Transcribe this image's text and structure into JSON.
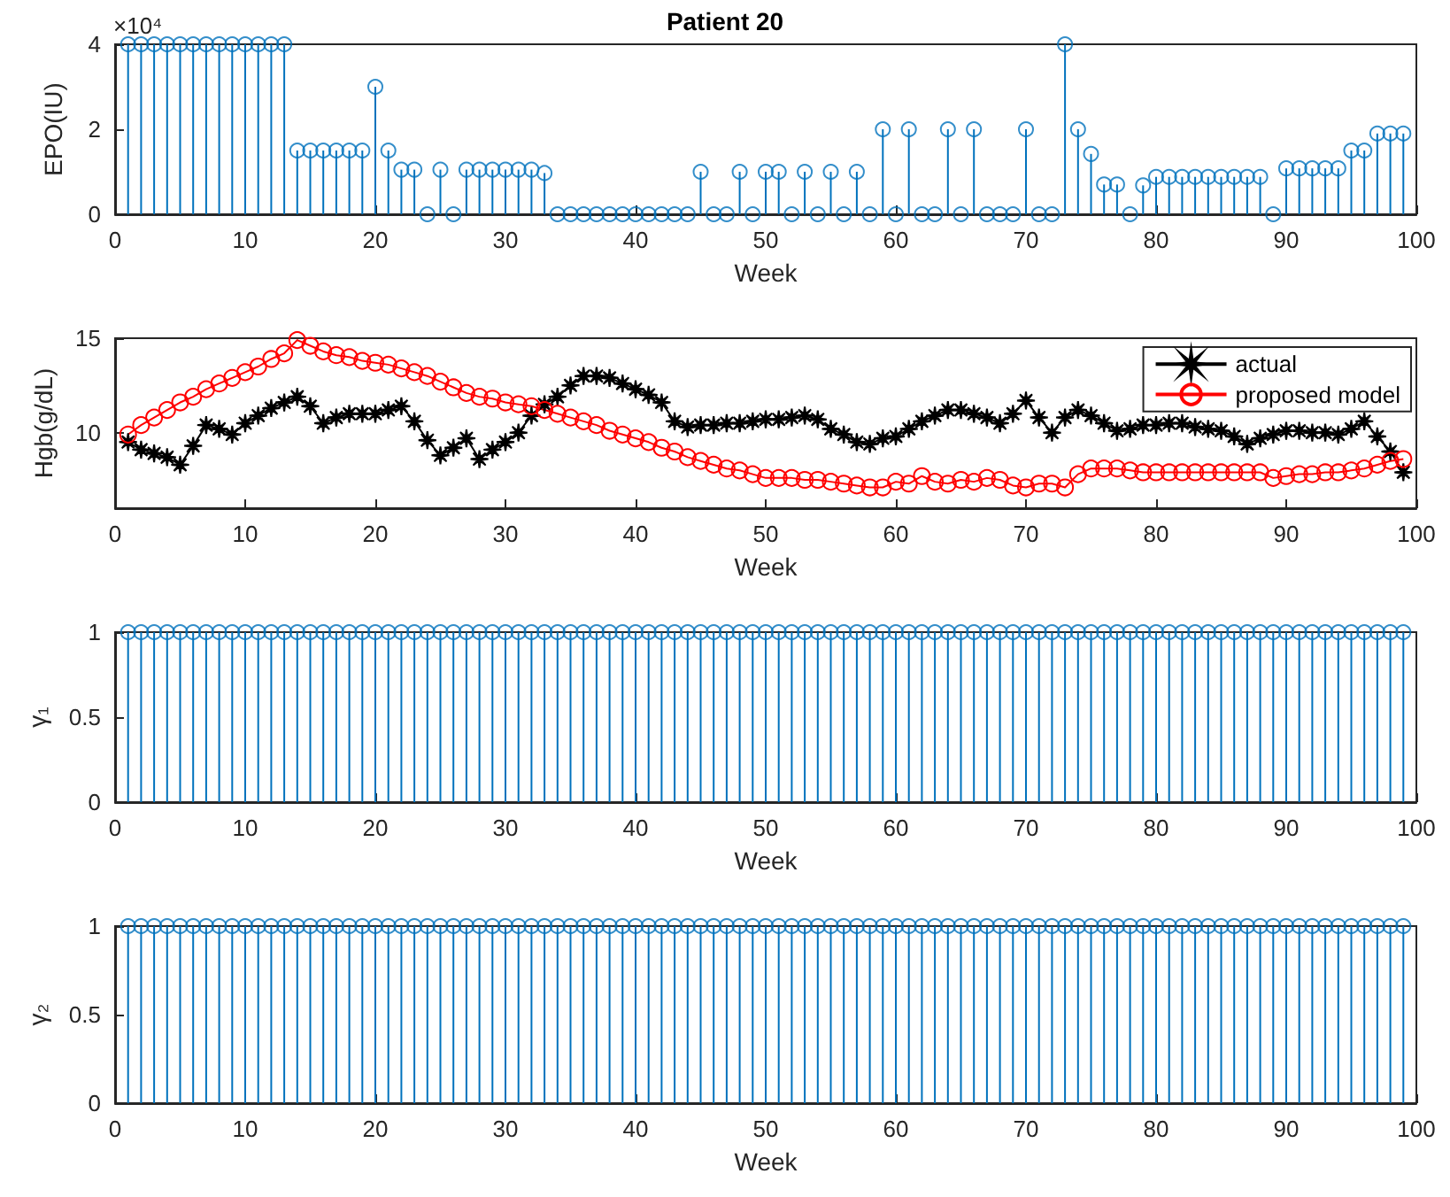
{
  "chart_data": [
    {
      "type": "lollipop",
      "title": "Patient 20",
      "xlabel": "Week",
      "ylabel": "EPO(IU)",
      "annotations": [
        "×10⁴"
      ],
      "marker": "circle",
      "xlim": [
        0,
        100
      ],
      "xticks": [
        0,
        10,
        20,
        30,
        40,
        50,
        60,
        70,
        80,
        90,
        100
      ],
      "ylim": [
        0,
        4
      ],
      "yticks": [
        0,
        2,
        4
      ],
      "x": [
        1,
        2,
        3,
        4,
        5,
        6,
        7,
        8,
        9,
        10,
        11,
        12,
        13,
        14,
        15,
        16,
        17,
        18,
        19,
        20,
        21,
        22,
        23,
        24,
        25,
        26,
        27,
        28,
        29,
        30,
        31,
        32,
        33,
        34,
        35,
        36,
        37,
        38,
        39,
        40,
        41,
        42,
        43,
        44,
        45,
        46,
        47,
        48,
        49,
        50,
        51,
        52,
        53,
        54,
        55,
        56,
        57,
        58,
        59,
        60,
        61,
        62,
        63,
        64,
        65,
        66,
        67,
        68,
        69,
        70,
        71,
        72,
        73,
        74,
        75,
        76,
        77,
        78,
        79,
        80,
        81,
        82,
        83,
        84,
        85,
        86,
        87,
        88,
        89,
        90,
        91,
        92,
        93,
        94,
        95,
        96,
        97,
        98,
        99
      ],
      "series": [
        {
          "color": "#0072bd",
          "values": [
            4,
            4,
            4,
            4,
            4,
            4,
            4,
            4,
            4,
            4,
            4,
            4,
            4,
            1.5,
            1.5,
            1.5,
            1.5,
            1.5,
            1.5,
            3,
            1.5,
            1.05,
            1.05,
            0,
            1.05,
            0,
            1.05,
            1.05,
            1.05,
            1.05,
            1.05,
            1.05,
            0.97,
            0,
            0,
            0,
            0,
            0,
            0,
            0,
            0,
            0,
            0,
            0,
            1,
            0,
            0,
            1,
            0,
            1,
            1,
            0,
            1,
            0,
            1,
            0,
            1,
            0,
            2,
            0,
            2,
            0,
            0,
            2,
            0,
            2,
            0,
            0,
            0,
            2,
            0,
            0,
            4,
            2,
            1.42,
            0.7,
            0.7,
            0,
            0.68,
            0.88,
            0.88,
            0.88,
            0.88,
            0.88,
            0.88,
            0.88,
            0.88,
            0.88,
            0,
            1.08,
            1.08,
            1.08,
            1.08,
            1.08,
            1.5,
            1.5,
            1.9,
            1.9,
            1.9
          ]
        }
      ]
    },
    {
      "type": "line",
      "xlabel": "Week",
      "ylabel": "Hgb(g/dL)",
      "legend": "top right",
      "xlim": [
        0,
        100
      ],
      "xticks": [
        0,
        10,
        20,
        30,
        40,
        50,
        60,
        70,
        80,
        90,
        100
      ],
      "ylim": [
        6,
        15
      ],
      "yticks": [
        10,
        15
      ],
      "x": [
        1,
        2,
        3,
        4,
        5,
        6,
        7,
        8,
        9,
        10,
        11,
        12,
        13,
        14,
        15,
        16,
        17,
        18,
        19,
        20,
        21,
        22,
        23,
        24,
        25,
        26,
        27,
        28,
        29,
        30,
        31,
        32,
        33,
        34,
        35,
        36,
        37,
        38,
        39,
        40,
        41,
        42,
        43,
        44,
        45,
        46,
        47,
        48,
        49,
        50,
        51,
        52,
        53,
        54,
        55,
        56,
        57,
        58,
        59,
        60,
        61,
        62,
        63,
        64,
        65,
        66,
        67,
        68,
        69,
        70,
        71,
        72,
        73,
        74,
        75,
        76,
        77,
        78,
        79,
        80,
        81,
        82,
        83,
        84,
        85,
        86,
        87,
        88,
        89,
        90,
        91,
        92,
        93,
        94,
        95,
        96,
        97,
        98,
        99
      ],
      "series": [
        {
          "name": "actual",
          "color": "#000000",
          "marker": "star",
          "values": [
            9.5,
            9.1,
            8.9,
            8.7,
            8.3,
            9.3,
            10.4,
            10.2,
            9.9,
            10.5,
            10.9,
            11.3,
            11.6,
            11.9,
            11.4,
            10.5,
            10.8,
            11.0,
            11.0,
            11.0,
            11.2,
            11.4,
            10.6,
            9.6,
            8.8,
            9.2,
            9.7,
            8.6,
            9.1,
            9.5,
            10.0,
            10.9,
            11.5,
            11.9,
            12.5,
            13.0,
            13.0,
            12.9,
            12.6,
            12.3,
            12.0,
            11.6,
            10.6,
            10.3,
            10.4,
            10.4,
            10.5,
            10.5,
            10.6,
            10.7,
            10.7,
            10.8,
            10.9,
            10.7,
            10.2,
            9.9,
            9.5,
            9.4,
            9.7,
            9.8,
            10.2,
            10.6,
            10.9,
            11.2,
            11.2,
            11.0,
            10.8,
            10.5,
            11.0,
            11.7,
            10.8,
            10.0,
            10.8,
            11.2,
            10.9,
            10.5,
            10.1,
            10.2,
            10.4,
            10.4,
            10.5,
            10.5,
            10.3,
            10.2,
            10.1,
            9.8,
            9.4,
            9.7,
            9.9,
            10.1,
            10.1,
            10.0,
            10.0,
            9.9,
            10.2,
            10.6,
            9.8,
            9.0,
            7.9
          ]
        },
        {
          "name": "proposed model",
          "color": "#ff0000",
          "marker": "circle",
          "values": [
            9.9,
            10.4,
            10.8,
            11.2,
            11.6,
            11.9,
            12.3,
            12.6,
            12.9,
            13.2,
            13.5,
            13.9,
            14.2,
            14.9,
            14.6,
            14.3,
            14.1,
            14.0,
            13.8,
            13.7,
            13.6,
            13.4,
            13.2,
            13.0,
            12.7,
            12.4,
            12.1,
            11.9,
            11.8,
            11.6,
            11.5,
            11.4,
            11.2,
            11.0,
            10.8,
            10.6,
            10.4,
            10.1,
            9.9,
            9.7,
            9.5,
            9.2,
            9.0,
            8.7,
            8.5,
            8.3,
            8.1,
            8.0,
            7.8,
            7.6,
            7.6,
            7.6,
            7.5,
            7.5,
            7.4,
            7.3,
            7.2,
            7.1,
            7.1,
            7.4,
            7.3,
            7.7,
            7.4,
            7.3,
            7.5,
            7.4,
            7.6,
            7.5,
            7.2,
            7.1,
            7.3,
            7.3,
            7.1,
            7.8,
            8.1,
            8.1,
            8.1,
            8.0,
            7.9,
            7.9,
            7.9,
            7.9,
            7.9,
            7.9,
            7.9,
            7.9,
            7.9,
            7.9,
            7.6,
            7.7,
            7.8,
            7.8,
            7.9,
            7.9,
            8.0,
            8.1,
            8.3,
            8.5,
            8.6
          ]
        }
      ]
    },
    {
      "type": "lollipop",
      "xlabel": "Week",
      "ylabel": "γ₁",
      "marker": "circle",
      "xlim": [
        0,
        100
      ],
      "xticks": [
        0,
        10,
        20,
        30,
        40,
        50,
        60,
        70,
        80,
        90,
        100
      ],
      "ylim": [
        0,
        1
      ],
      "yticks": [
        0,
        0.5,
        1
      ],
      "x": [
        1,
        2,
        3,
        4,
        5,
        6,
        7,
        8,
        9,
        10,
        11,
        12,
        13,
        14,
        15,
        16,
        17,
        18,
        19,
        20,
        21,
        22,
        23,
        24,
        25,
        26,
        27,
        28,
        29,
        30,
        31,
        32,
        33,
        34,
        35,
        36,
        37,
        38,
        39,
        40,
        41,
        42,
        43,
        44,
        45,
        46,
        47,
        48,
        49,
        50,
        51,
        52,
        53,
        54,
        55,
        56,
        57,
        58,
        59,
        60,
        61,
        62,
        63,
        64,
        65,
        66,
        67,
        68,
        69,
        70,
        71,
        72,
        73,
        74,
        75,
        76,
        77,
        78,
        79,
        80,
        81,
        82,
        83,
        84,
        85,
        86,
        87,
        88,
        89,
        90,
        91,
        92,
        93,
        94,
        95,
        96,
        97,
        98,
        99
      ],
      "series": [
        {
          "color": "#0072bd",
          "values": [
            1,
            1,
            1,
            1,
            1,
            1,
            1,
            1,
            1,
            1,
            1,
            1,
            1,
            1,
            1,
            1,
            1,
            1,
            1,
            1,
            1,
            1,
            1,
            1,
            1,
            1,
            1,
            1,
            1,
            1,
            1,
            1,
            1,
            1,
            1,
            1,
            1,
            1,
            1,
            1,
            1,
            1,
            1,
            1,
            1,
            1,
            1,
            1,
            1,
            1,
            1,
            1,
            1,
            1,
            1,
            1,
            1,
            1,
            1,
            1,
            1,
            1,
            1,
            1,
            1,
            1,
            1,
            1,
            1,
            1,
            1,
            1,
            1,
            1,
            1,
            1,
            1,
            1,
            1,
            1,
            1,
            1,
            1,
            1,
            1,
            1,
            1,
            1,
            1,
            1,
            1,
            1,
            1,
            1,
            1,
            1,
            1,
            1,
            1
          ]
        }
      ]
    },
    {
      "type": "lollipop",
      "xlabel": "Week",
      "ylabel": "γ₂",
      "marker": "circle",
      "xlim": [
        0,
        100
      ],
      "xticks": [
        0,
        10,
        20,
        30,
        40,
        50,
        60,
        70,
        80,
        90,
        100
      ],
      "ylim": [
        0,
        1
      ],
      "yticks": [
        0,
        0.5,
        1
      ],
      "x": [
        1,
        2,
        3,
        4,
        5,
        6,
        7,
        8,
        9,
        10,
        11,
        12,
        13,
        14,
        15,
        16,
        17,
        18,
        19,
        20,
        21,
        22,
        23,
        24,
        25,
        26,
        27,
        28,
        29,
        30,
        31,
        32,
        33,
        34,
        35,
        36,
        37,
        38,
        39,
        40,
        41,
        42,
        43,
        44,
        45,
        46,
        47,
        48,
        49,
        50,
        51,
        52,
        53,
        54,
        55,
        56,
        57,
        58,
        59,
        60,
        61,
        62,
        63,
        64,
        65,
        66,
        67,
        68,
        69,
        70,
        71,
        72,
        73,
        74,
        75,
        76,
        77,
        78,
        79,
        80,
        81,
        82,
        83,
        84,
        85,
        86,
        87,
        88,
        89,
        90,
        91,
        92,
        93,
        94,
        95,
        96,
        97,
        98,
        99
      ],
      "series": [
        {
          "color": "#0072bd",
          "values": [
            1,
            1,
            1,
            1,
            1,
            1,
            1,
            1,
            1,
            1,
            1,
            1,
            1,
            1,
            1,
            1,
            1,
            1,
            1,
            1,
            1,
            1,
            1,
            1,
            1,
            1,
            1,
            1,
            1,
            1,
            1,
            1,
            1,
            1,
            1,
            1,
            1,
            1,
            1,
            1,
            1,
            1,
            1,
            1,
            1,
            1,
            1,
            1,
            1,
            1,
            1,
            1,
            1,
            1,
            1,
            1,
            1,
            1,
            1,
            1,
            1,
            1,
            1,
            1,
            1,
            1,
            1,
            1,
            1,
            1,
            1,
            1,
            1,
            1,
            1,
            1,
            1,
            1,
            1,
            1,
            1,
            1,
            1,
            1,
            1,
            1,
            1,
            1,
            1,
            1,
            1,
            1,
            1,
            1,
            1,
            1,
            1,
            1,
            1
          ]
        }
      ]
    }
  ]
}
